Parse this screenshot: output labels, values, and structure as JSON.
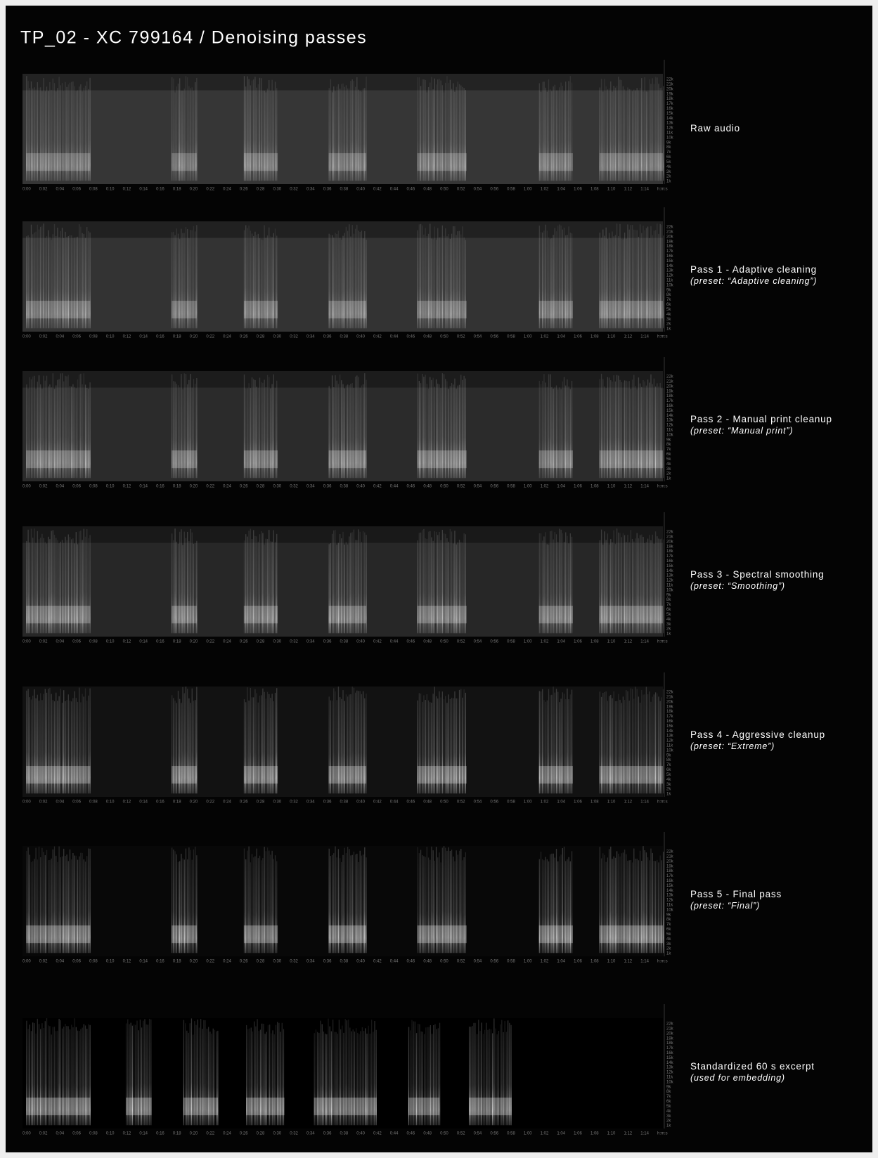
{
  "header": {
    "title": "TP_02 - XC 799164 / Denoising passes"
  },
  "panels": [
    {
      "label": "Raw audio"
    },
    {
      "label": "Pass 1 - Adaptive cleaning",
      "preset": "(preset: “Adaptive cleaning”)"
    },
    {
      "label": "Pass 2 - Manual print cleanup",
      "preset": "(preset: “Manual print”)"
    },
    {
      "label": "Pass 3 - Spectral smoothing",
      "preset": "(preset: “Smoothing”)"
    },
    {
      "label": "Pass 4 - Aggressive cleanup",
      "preset": "(preset: “Extreme”)"
    },
    {
      "label": "Pass 5 - Final pass",
      "preset": "(preset: “Final”)"
    },
    {
      "label": "Standardized 60 s excerpt",
      "preset": "(used for embedding)"
    }
  ],
  "time_axis": [
    "0:00",
    "0:02",
    "0:04",
    "0:06",
    "0:08",
    "0:10",
    "0:12",
    "0:14",
    "0:16",
    "0:18",
    "0:20",
    "0:22",
    "0:24",
    "0:26",
    "0:28",
    "0:30",
    "0:32",
    "0:34",
    "0:36",
    "0:38",
    "0:40",
    "0:42",
    "0:44",
    "0:46",
    "0:48",
    "0:50",
    "0:52",
    "0:54",
    "0:56",
    "0:58",
    "1:00",
    "1:02",
    "1:04",
    "1:06",
    "1:08",
    "1:10",
    "1:12",
    "1:14",
    "h:m:s"
  ],
  "freq_axis": [
    "22k",
    "21k",
    "20k",
    "19k",
    "18k",
    "17k",
    "16k",
    "15k",
    "14k",
    "13k",
    "12k",
    "11k",
    "10k",
    "9k",
    "8k",
    "7k",
    "6k",
    "5k",
    "4k",
    "3k",
    "2k",
    "1k"
  ]
}
